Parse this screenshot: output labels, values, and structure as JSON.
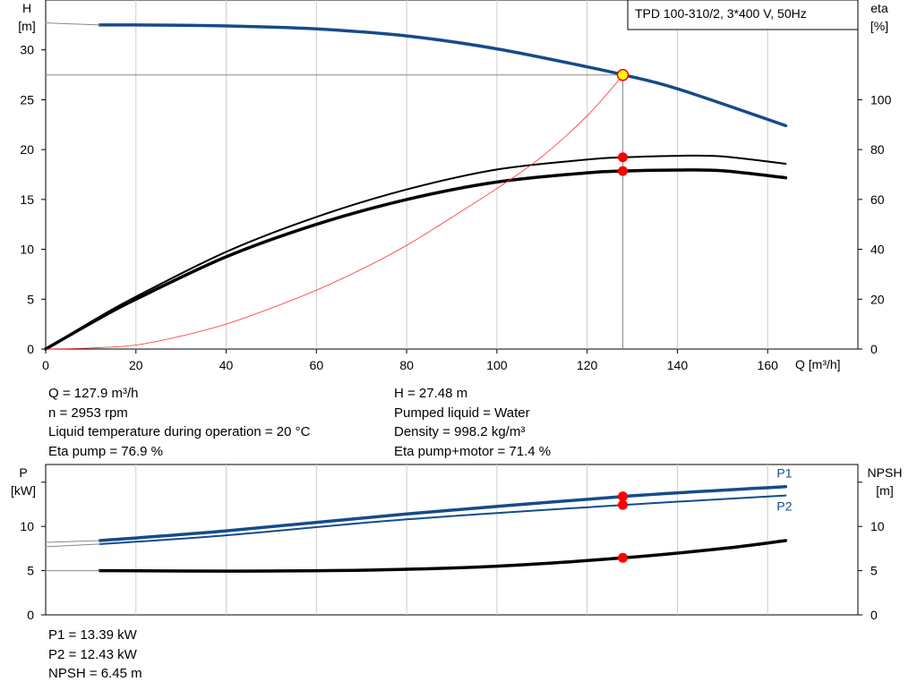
{
  "colors": {
    "head": "#154b8a",
    "efficiency": "#000000",
    "system": "#ff3030",
    "duty": "#ff0000",
    "duty_head": "#ffff00",
    "grid": "#cccccc"
  },
  "chart_data": [
    {
      "type": "line",
      "title": "TPD 100-310/2, 3*400 V, 50Hz",
      "xlabel": "Q [m³/h]",
      "ylabel": "H\n[m]",
      "y2label": "eta\n[%]",
      "xlim": [
        0,
        180
      ],
      "ylim": [
        0,
        35
      ],
      "y2lim": [
        0,
        140
      ],
      "x_ticks": [
        0,
        20,
        40,
        60,
        80,
        100,
        120,
        140,
        160
      ],
      "y_ticks": [
        0,
        5,
        10,
        15,
        20,
        25,
        30
      ],
      "y2_ticks": [
        0,
        20,
        40,
        60,
        80,
        100
      ],
      "grid": true,
      "series": [
        {
          "axis": "left",
          "style": "head",
          "x": [
            12,
            20,
            40,
            60,
            80,
            100,
            120,
            128,
            140,
            164
          ],
          "y": [
            32.5,
            32.5,
            32.4,
            32.1,
            31.4,
            30.1,
            28.3,
            27.5,
            26.1,
            22.4
          ]
        },
        {
          "axis": "left",
          "style": "head-extension",
          "x": [
            0,
            12
          ],
          "y": [
            32.7,
            32.5
          ]
        },
        {
          "axis": "right",
          "style": "eta-pump",
          "x": [
            0,
            12,
            20,
            40,
            60,
            80,
            100,
            120,
            128,
            140,
            150,
            164
          ],
          "y": [
            0,
            13,
            21,
            39,
            53,
            64,
            72,
            76,
            76.9,
            77.5,
            77.3,
            74.3
          ]
        },
        {
          "axis": "right",
          "style": "eta-pump-motor",
          "x": [
            0,
            12,
            20,
            40,
            60,
            80,
            100,
            120,
            128,
            140,
            150,
            164
          ],
          "y": [
            0,
            12.4,
            20,
            37,
            50,
            60,
            67,
            70.7,
            71.4,
            71.8,
            71.5,
            68.7
          ]
        },
        {
          "axis": "left",
          "style": "system",
          "x": [
            0,
            10,
            20,
            30,
            40,
            50,
            60,
            70,
            80,
            90,
            100,
            110,
            120,
            128
          ],
          "y": [
            0,
            0.1,
            0.4,
            1.3,
            2.5,
            4.1,
            5.9,
            8.0,
            10.4,
            13.2,
            16.1,
            19.3,
            23.4,
            27.48
          ]
        }
      ],
      "duty_point": {
        "x": 127.9,
        "head": 27.48,
        "eta_pump": 76.9,
        "eta_pump_motor": 71.4
      }
    },
    {
      "type": "line",
      "ylabel": "P\n[kW]",
      "y2label": "NPSH\n[m]",
      "xlim": [
        0,
        180
      ],
      "ylim": [
        0,
        17
      ],
      "x_ticks": [
        0,
        20,
        40,
        60,
        80,
        100,
        120,
        140,
        160
      ],
      "y_ticks": [
        0,
        5,
        10
      ],
      "y2_ticks": [
        0,
        5,
        10
      ],
      "grid": true,
      "series": [
        {
          "name": "P1",
          "style": "p1",
          "x": [
            12,
            40,
            80,
            128,
            164
          ],
          "y": [
            8.4,
            9.5,
            11.4,
            13.39,
            14.5
          ]
        },
        {
          "style": "p1-extension",
          "x": [
            0,
            12
          ],
          "y": [
            8.2,
            8.4
          ]
        },
        {
          "name": "P2",
          "style": "p2",
          "x": [
            12,
            40,
            80,
            128,
            164
          ],
          "y": [
            8.0,
            9.0,
            10.8,
            12.43,
            13.5
          ]
        },
        {
          "style": "p2-extension",
          "x": [
            0,
            12
          ],
          "y": [
            7.7,
            8.0
          ]
        },
        {
          "style": "npsh",
          "x": [
            12,
            40,
            70,
            100,
            128,
            150,
            164
          ],
          "y": [
            5.0,
            4.95,
            5.05,
            5.5,
            6.45,
            7.5,
            8.4
          ]
        },
        {
          "style": "npsh-extension",
          "x": [
            0,
            12
          ],
          "y": [
            5.0,
            5.0
          ]
        }
      ],
      "duty_point": {
        "x": 127.9,
        "p1": 13.39,
        "p2": 12.43,
        "npsh": 6.45
      }
    }
  ],
  "info_upper_left": [
    "Q = 127.9 m³/h",
    "n = 2953 rpm",
    "Liquid temperature during operation = 20 °C",
    "Eta pump = 76.9 %"
  ],
  "info_upper_right": [
    "H = 27.48 m",
    "Pumped liquid = Water",
    "Density = 998.2 kg/m³",
    "Eta pump+motor = 71.4 %"
  ],
  "info_lower": [
    "P1 = 13.39 kW",
    "P2 = 12.43 kW",
    "NPSH = 6.45 m"
  ]
}
